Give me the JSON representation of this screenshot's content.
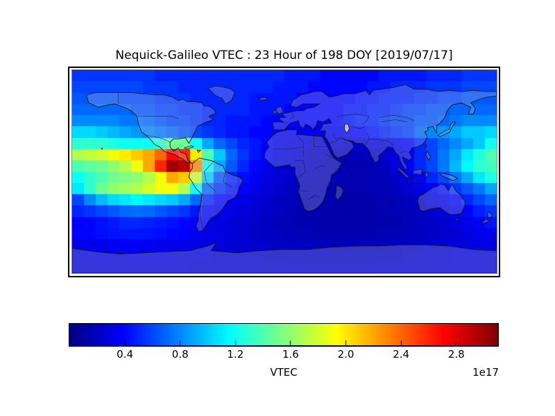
{
  "figure": {
    "title": "Nequick-Galileo VTEC : 23 Hour of 198 DOY [2019/07/17]",
    "background_color": "#ffffff"
  },
  "chart_data": {
    "type": "heatmap",
    "title": "Nequick-Galileo VTEC : 23 Hour of 198 DOY [2019/07/17]",
    "projection": "equirectangular-world-map",
    "lon_range": [
      -180,
      180
    ],
    "lat_range": [
      -90,
      90
    ],
    "grid_step_deg": 10,
    "colormap": "jet",
    "vmin": 0,
    "vmax": 3.1,
    "legend_position": "bottom",
    "grid": false,
    "colorbar": {
      "label": "VTEC",
      "offset_label": "1e17",
      "orientation": "horizontal",
      "ticks": [
        0.4,
        0.8,
        1.2,
        1.6,
        2.0,
        2.4,
        2.8
      ],
      "tick_labels": [
        "0.4",
        "0.8",
        "1.2",
        "1.6",
        "2.0",
        "2.4",
        "2.8"
      ]
    },
    "lat_centers": [
      85,
      75,
      65,
      55,
      45,
      35,
      25,
      15,
      5,
      -5,
      -15,
      -25,
      -35,
      -45,
      -55,
      -65,
      -75,
      -85
    ],
    "lon_start": -175,
    "values": [
      [
        0.55,
        0.55,
        0.55,
        0.55,
        0.55,
        0.55,
        0.55,
        0.5,
        0.5,
        0.5,
        0.5,
        0.5,
        0.5,
        0.5,
        0.5,
        0.5,
        0.5,
        0.5,
        0.45,
        0.45,
        0.45,
        0.4,
        0.4,
        0.4,
        0.4,
        0.4,
        0.45,
        0.45,
        0.45,
        0.45,
        0.5,
        0.5,
        0.5,
        0.55,
        0.55,
        0.55
      ],
      [
        0.6,
        0.6,
        0.6,
        0.6,
        0.6,
        0.6,
        0.55,
        0.55,
        0.55,
        0.5,
        0.5,
        0.5,
        0.5,
        0.5,
        0.5,
        0.5,
        0.5,
        0.45,
        0.45,
        0.45,
        0.4,
        0.4,
        0.4,
        0.4,
        0.4,
        0.45,
        0.45,
        0.5,
        0.5,
        0.5,
        0.55,
        0.55,
        0.55,
        0.6,
        0.6,
        0.6
      ],
      [
        0.65,
        0.65,
        0.65,
        0.65,
        0.6,
        0.6,
        0.6,
        0.55,
        0.55,
        0.55,
        0.5,
        0.5,
        0.5,
        0.5,
        0.5,
        0.45,
        0.45,
        0.45,
        0.45,
        0.4,
        0.4,
        0.4,
        0.4,
        0.4,
        0.45,
        0.45,
        0.5,
        0.5,
        0.5,
        0.55,
        0.55,
        0.6,
        0.6,
        0.65,
        0.65,
        0.65
      ],
      [
        0.7,
        0.7,
        0.7,
        0.7,
        0.7,
        0.65,
        0.65,
        0.6,
        0.6,
        0.55,
        0.55,
        0.5,
        0.5,
        0.5,
        0.5,
        0.45,
        0.45,
        0.45,
        0.4,
        0.4,
        0.4,
        0.4,
        0.4,
        0.45,
        0.45,
        0.5,
        0.5,
        0.55,
        0.6,
        0.6,
        0.65,
        0.65,
        0.7,
        0.7,
        0.7,
        0.7
      ],
      [
        0.8,
        0.8,
        0.8,
        0.8,
        0.75,
        0.75,
        0.7,
        0.65,
        0.6,
        0.6,
        0.55,
        0.5,
        0.5,
        0.45,
        0.45,
        0.45,
        0.4,
        0.4,
        0.4,
        0.4,
        0.4,
        0.4,
        0.4,
        0.45,
        0.5,
        0.5,
        0.55,
        0.6,
        0.6,
        0.65,
        0.65,
        0.7,
        0.75,
        0.8,
        0.8,
        0.8
      ],
      [
        1.05,
        1.05,
        1.0,
        0.95,
        0.9,
        0.85,
        0.8,
        0.75,
        0.7,
        0.65,
        0.6,
        0.55,
        0.5,
        0.45,
        0.45,
        0.4,
        0.4,
        0.35,
        0.35,
        0.35,
        0.35,
        0.35,
        0.35,
        0.4,
        0.4,
        0.45,
        0.5,
        0.55,
        0.6,
        0.7,
        0.8,
        0.85,
        0.9,
        1.0,
        1.0,
        1.05
      ],
      [
        1.3,
        1.3,
        1.3,
        1.25,
        1.2,
        1.2,
        1.2,
        1.3,
        1.5,
        1.5,
        1.2,
        0.9,
        0.7,
        0.6,
        0.5,
        0.45,
        0.4,
        0.35,
        0.3,
        0.3,
        0.25,
        0.25,
        0.25,
        0.25,
        0.25,
        0.3,
        0.3,
        0.35,
        0.4,
        0.5,
        0.6,
        0.7,
        0.8,
        0.9,
        1.0,
        1.2
      ],
      [
        1.7,
        1.75,
        1.8,
        1.9,
        2.0,
        2.1,
        2.2,
        2.4,
        2.7,
        2.6,
        2.0,
        1.4,
        1.0,
        0.7,
        0.55,
        0.45,
        0.4,
        0.3,
        0.28,
        0.25,
        0.22,
        0.2,
        0.2,
        0.18,
        0.18,
        0.2,
        0.25,
        0.3,
        0.4,
        0.5,
        0.6,
        0.75,
        0.9,
        1.1,
        1.25,
        1.4
      ],
      [
        1.4,
        1.45,
        1.5,
        1.6,
        1.7,
        1.9,
        2.2,
        2.6,
        3.0,
        2.9,
        2.3,
        1.2,
        0.9,
        0.65,
        0.5,
        0.4,
        0.33,
        0.28,
        0.25,
        0.22,
        0.2,
        0.18,
        0.16,
        0.15,
        0.15,
        0.17,
        0.2,
        0.28,
        0.38,
        0.5,
        0.6,
        0.75,
        0.95,
        1.15,
        1.3,
        1.35
      ],
      [
        1.2,
        1.3,
        1.4,
        1.5,
        1.55,
        1.6,
        1.7,
        1.9,
        2.2,
        2.1,
        1.8,
        1.0,
        0.65,
        0.5,
        0.42,
        0.36,
        0.3,
        0.26,
        0.23,
        0.2,
        0.18,
        0.17,
        0.16,
        0.15,
        0.15,
        0.16,
        0.18,
        0.22,
        0.3,
        0.4,
        0.5,
        0.6,
        0.75,
        0.9,
        1.1,
        1.25
      ],
      [
        1.1,
        1.3,
        1.5,
        1.6,
        1.65,
        1.7,
        1.8,
        1.9,
        1.9,
        1.7,
        1.2,
        0.7,
        0.55,
        0.45,
        0.38,
        0.32,
        0.28,
        0.24,
        0.2,
        0.18,
        0.17,
        0.16,
        0.15,
        0.14,
        0.15,
        0.16,
        0.18,
        0.2,
        0.25,
        0.3,
        0.38,
        0.45,
        0.55,
        0.65,
        0.75,
        0.9
      ],
      [
        0.6,
        0.8,
        0.95,
        1.05,
        1.1,
        1.15,
        1.1,
        1.05,
        1.0,
        0.9,
        0.7,
        0.5,
        0.4,
        0.35,
        0.3,
        0.27,
        0.24,
        0.2,
        0.18,
        0.16,
        0.15,
        0.14,
        0.13,
        0.13,
        0.13,
        0.14,
        0.15,
        0.17,
        0.2,
        0.24,
        0.28,
        0.33,
        0.4,
        0.5,
        0.6,
        0.7
      ],
      [
        0.5,
        0.55,
        0.6,
        0.65,
        0.7,
        0.72,
        0.7,
        0.65,
        0.6,
        0.55,
        0.45,
        0.38,
        0.33,
        0.3,
        0.28,
        0.25,
        0.22,
        0.19,
        0.17,
        0.15,
        0.14,
        0.13,
        0.13,
        0.12,
        0.13,
        0.13,
        0.14,
        0.16,
        0.18,
        0.2,
        0.24,
        0.28,
        0.33,
        0.4,
        0.48,
        0.55
      ],
      [
        0.38,
        0.4,
        0.43,
        0.46,
        0.5,
        0.5,
        0.48,
        0.46,
        0.44,
        0.4,
        0.36,
        0.33,
        0.3,
        0.28,
        0.25,
        0.22,
        0.2,
        0.18,
        0.16,
        0.15,
        0.14,
        0.13,
        0.13,
        0.13,
        0.13,
        0.13,
        0.14,
        0.15,
        0.17,
        0.19,
        0.21,
        0.24,
        0.28,
        0.32,
        0.38,
        0.45
      ],
      [
        0.4,
        0.4,
        0.42,
        0.44,
        0.45,
        0.45,
        0.44,
        0.42,
        0.4,
        0.38,
        0.35,
        0.32,
        0.3,
        0.28,
        0.25,
        0.23,
        0.21,
        0.19,
        0.18,
        0.17,
        0.16,
        0.15,
        0.15,
        0.15,
        0.15,
        0.15,
        0.16,
        0.17,
        0.18,
        0.2,
        0.22,
        0.24,
        0.26,
        0.3,
        0.33,
        0.33
      ],
      [
        0.32,
        0.33,
        0.34,
        0.35,
        0.36,
        0.36,
        0.35,
        0.34,
        0.33,
        0.32,
        0.3,
        0.29,
        0.28,
        0.26,
        0.25,
        0.24,
        0.22,
        0.21,
        0.2,
        0.19,
        0.19,
        0.18,
        0.18,
        0.18,
        0.18,
        0.18,
        0.19,
        0.2,
        0.21,
        0.22,
        0.23,
        0.25,
        0.27,
        0.28,
        0.3,
        0.31
      ],
      [
        0.3,
        0.3,
        0.3,
        0.3,
        0.31,
        0.31,
        0.31,
        0.3,
        0.3,
        0.29,
        0.29,
        0.28,
        0.27,
        0.26,
        0.25,
        0.25,
        0.24,
        0.23,
        0.23,
        0.22,
        0.22,
        0.22,
        0.22,
        0.22,
        0.22,
        0.23,
        0.23,
        0.24,
        0.25,
        0.25,
        0.26,
        0.27,
        0.28,
        0.28,
        0.29,
        0.3
      ],
      [
        0.28,
        0.28,
        0.28,
        0.28,
        0.28,
        0.28,
        0.28,
        0.28,
        0.28,
        0.28,
        0.27,
        0.27,
        0.27,
        0.27,
        0.26,
        0.26,
        0.26,
        0.26,
        0.26,
        0.25,
        0.25,
        0.25,
        0.25,
        0.25,
        0.25,
        0.25,
        0.26,
        0.26,
        0.26,
        0.27,
        0.27,
        0.27,
        0.28,
        0.28,
        0.28,
        0.28
      ]
    ]
  }
}
